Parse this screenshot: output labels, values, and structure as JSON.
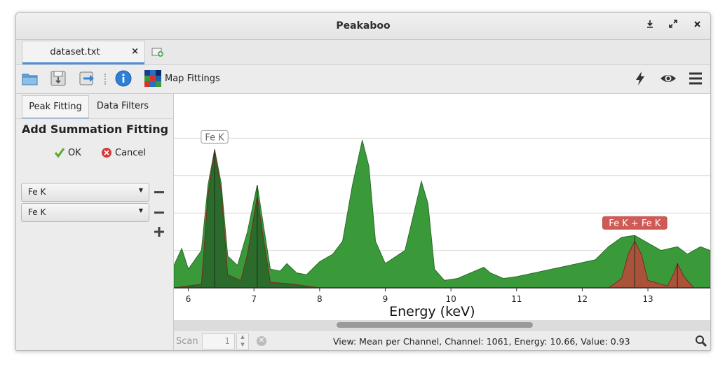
{
  "window": {
    "title": "Peakaboo"
  },
  "tabs": [
    {
      "label": "dataset.txt",
      "close": "×"
    }
  ],
  "toolbar": {
    "map_fittings_label": "Map Fittings"
  },
  "sidebar": {
    "tabs": [
      {
        "label": "Peak Fitting"
      },
      {
        "label": "Data Filters"
      }
    ],
    "heading": "Add Summation Fitting",
    "ok_label": "OK",
    "cancel_label": "Cancel",
    "selects": [
      {
        "value": "Fe K"
      },
      {
        "value": "Fe K"
      }
    ]
  },
  "chart_data": {
    "type": "area",
    "xlabel": "Energy (keV)",
    "ylabel": "",
    "xlim": [
      5.78,
      13.95
    ],
    "ylim": [
      0,
      1.0
    ],
    "x_ticks": [
      6,
      7,
      8,
      9,
      10,
      11,
      12,
      13
    ],
    "x_tick_labels": [
      "6",
      "7",
      "8",
      "9",
      "10",
      "11",
      "12",
      "13"
    ],
    "grid": "horizontal",
    "series": [
      {
        "color": "#3a9a3a",
        "points": [
          [
            5.78,
            0.12
          ],
          [
            5.9,
            0.21
          ],
          [
            6.0,
            0.1
          ],
          [
            6.2,
            0.2
          ],
          [
            6.3,
            0.55
          ],
          [
            6.4,
            0.74
          ],
          [
            6.5,
            0.56
          ],
          [
            6.6,
            0.17
          ],
          [
            6.75,
            0.12
          ],
          [
            6.9,
            0.3
          ],
          [
            7.05,
            0.55
          ],
          [
            7.15,
            0.32
          ],
          [
            7.25,
            0.1
          ],
          [
            7.4,
            0.09
          ],
          [
            7.5,
            0.13
          ],
          [
            7.65,
            0.08
          ],
          [
            7.8,
            0.07
          ],
          [
            8.0,
            0.14
          ],
          [
            8.2,
            0.18
          ],
          [
            8.35,
            0.25
          ],
          [
            8.5,
            0.55
          ],
          [
            8.65,
            0.79
          ],
          [
            8.75,
            0.65
          ],
          [
            8.85,
            0.25
          ],
          [
            9.0,
            0.13
          ],
          [
            9.3,
            0.2
          ],
          [
            9.45,
            0.42
          ],
          [
            9.55,
            0.57
          ],
          [
            9.65,
            0.45
          ],
          [
            9.75,
            0.1
          ],
          [
            9.9,
            0.04
          ],
          [
            10.1,
            0.05
          ],
          [
            10.3,
            0.08
          ],
          [
            10.5,
            0.11
          ],
          [
            10.6,
            0.08
          ],
          [
            10.8,
            0.05
          ],
          [
            11.0,
            0.06
          ],
          [
            11.4,
            0.09
          ],
          [
            11.8,
            0.12
          ],
          [
            12.2,
            0.15
          ],
          [
            12.4,
            0.22
          ],
          [
            12.6,
            0.27
          ],
          [
            12.8,
            0.28
          ],
          [
            13.0,
            0.24
          ],
          [
            13.2,
            0.2
          ],
          [
            13.45,
            0.22
          ],
          [
            13.6,
            0.18
          ],
          [
            13.8,
            0.22
          ],
          [
            13.95,
            0.2
          ]
        ]
      },
      {
        "name": "Fe K",
        "color": "#2b6b2b",
        "points": [
          [
            5.78,
            0.0
          ],
          [
            6.2,
            0.02
          ],
          [
            6.3,
            0.5
          ],
          [
            6.4,
            0.74
          ],
          [
            6.5,
            0.52
          ],
          [
            6.6,
            0.07
          ],
          [
            6.8,
            0.04
          ],
          [
            6.9,
            0.18
          ],
          [
            7.05,
            0.49
          ],
          [
            7.15,
            0.25
          ],
          [
            7.25,
            0.03
          ],
          [
            7.6,
            0.02
          ],
          [
            8.0,
            0.0
          ],
          [
            13.95,
            0.0
          ]
        ]
      },
      {
        "name": "Fe K + Fe K",
        "color": "#b84a3c",
        "points": [
          [
            12.4,
            0.0
          ],
          [
            12.6,
            0.05
          ],
          [
            12.7,
            0.18
          ],
          [
            12.8,
            0.25
          ],
          [
            12.9,
            0.18
          ],
          [
            13.0,
            0.04
          ],
          [
            13.3,
            0.01
          ],
          [
            13.4,
            0.08
          ],
          [
            13.45,
            0.13
          ],
          [
            13.55,
            0.06
          ],
          [
            13.7,
            0.0
          ],
          [
            13.95,
            0.0
          ]
        ]
      }
    ],
    "annotations": [
      {
        "text": "Fe K",
        "x": 6.4,
        "y": 0.74
      },
      {
        "text": "Fe K + Fe K",
        "x": 12.8,
        "y": 0.28
      }
    ]
  },
  "status": {
    "scan_label": "Scan",
    "scan_value": "1",
    "info": "View: Mean per Channel,  Channel: 1061,  Energy: 10.66,  Value: 0.93"
  }
}
